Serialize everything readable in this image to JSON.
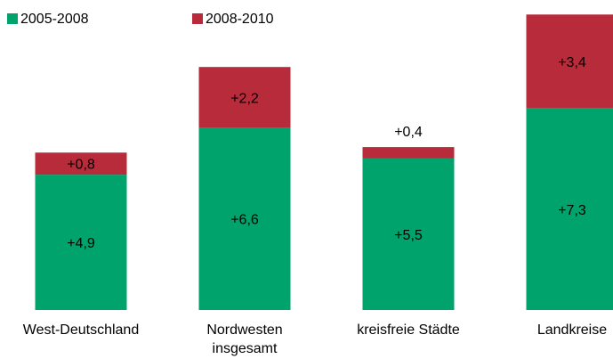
{
  "chart_data": {
    "type": "bar",
    "stacked": true,
    "categories": [
      [
        "West-Deutschland"
      ],
      [
        "Nordwesten",
        "insgesamt"
      ],
      [
        "kreisfreie Städte"
      ],
      [
        "Landkreise"
      ]
    ],
    "series": [
      {
        "name": "2005-2008",
        "color": "#00a36c",
        "values": [
          4.9,
          6.6,
          5.5,
          7.3
        ],
        "labels": [
          "+4,9",
          "+6,6",
          "+5,5",
          "+7,3"
        ]
      },
      {
        "name": "2008-2010",
        "color": "#b82b3a",
        "values": [
          0.8,
          2.2,
          0.4,
          3.4
        ],
        "labels": [
          "+0,8",
          "+2,2",
          "+0,4",
          "+3,4"
        ]
      }
    ],
    "title": "",
    "xlabel": "",
    "ylabel": "",
    "ylim": [
      0,
      10.7
    ],
    "grid": false,
    "legend": "top-left"
  }
}
